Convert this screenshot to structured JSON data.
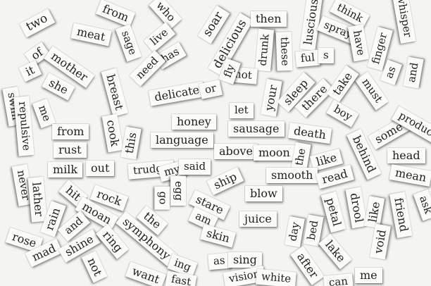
{
  "words": [
    "two",
    "from",
    "who",
    "meat",
    "sage",
    "live",
    "has",
    "need",
    "of",
    "mother",
    "she",
    "it",
    "soar",
    "delicious",
    "then",
    "drunk",
    "these",
    "luscious",
    "think",
    "spray",
    "have",
    "whisper",
    "finger",
    "ful",
    "s",
    "not",
    "fly",
    "as",
    "and",
    "must",
    "breast",
    "delicate",
    "or",
    "your",
    "sleep",
    "there",
    "take",
    "let",
    "boy",
    "some",
    "produce",
    "swim",
    "repulsive",
    "me",
    "cook",
    "honey",
    "sausage",
    "death",
    "from",
    "rust",
    "this",
    "language",
    "above",
    "moon",
    "the",
    "behind",
    "head",
    "like",
    "milk",
    "out",
    "trudge",
    "my",
    "said",
    "smooth",
    "read",
    "mean",
    "never",
    "lather",
    "ship",
    "egg",
    "go",
    "rock",
    "hit",
    "moan",
    "the",
    "blow",
    "stare",
    "am",
    "petal",
    "drool",
    "like",
    "friend",
    "ask",
    "rain",
    "and",
    "symphony",
    "skin",
    "juice",
    "day",
    "bed",
    "void",
    "rose",
    "mad",
    "shine",
    "ring",
    "lake",
    "not",
    "ing",
    "as",
    "sing",
    "after",
    "me",
    "want",
    "fast",
    "vision",
    "white",
    "can"
  ]
}
